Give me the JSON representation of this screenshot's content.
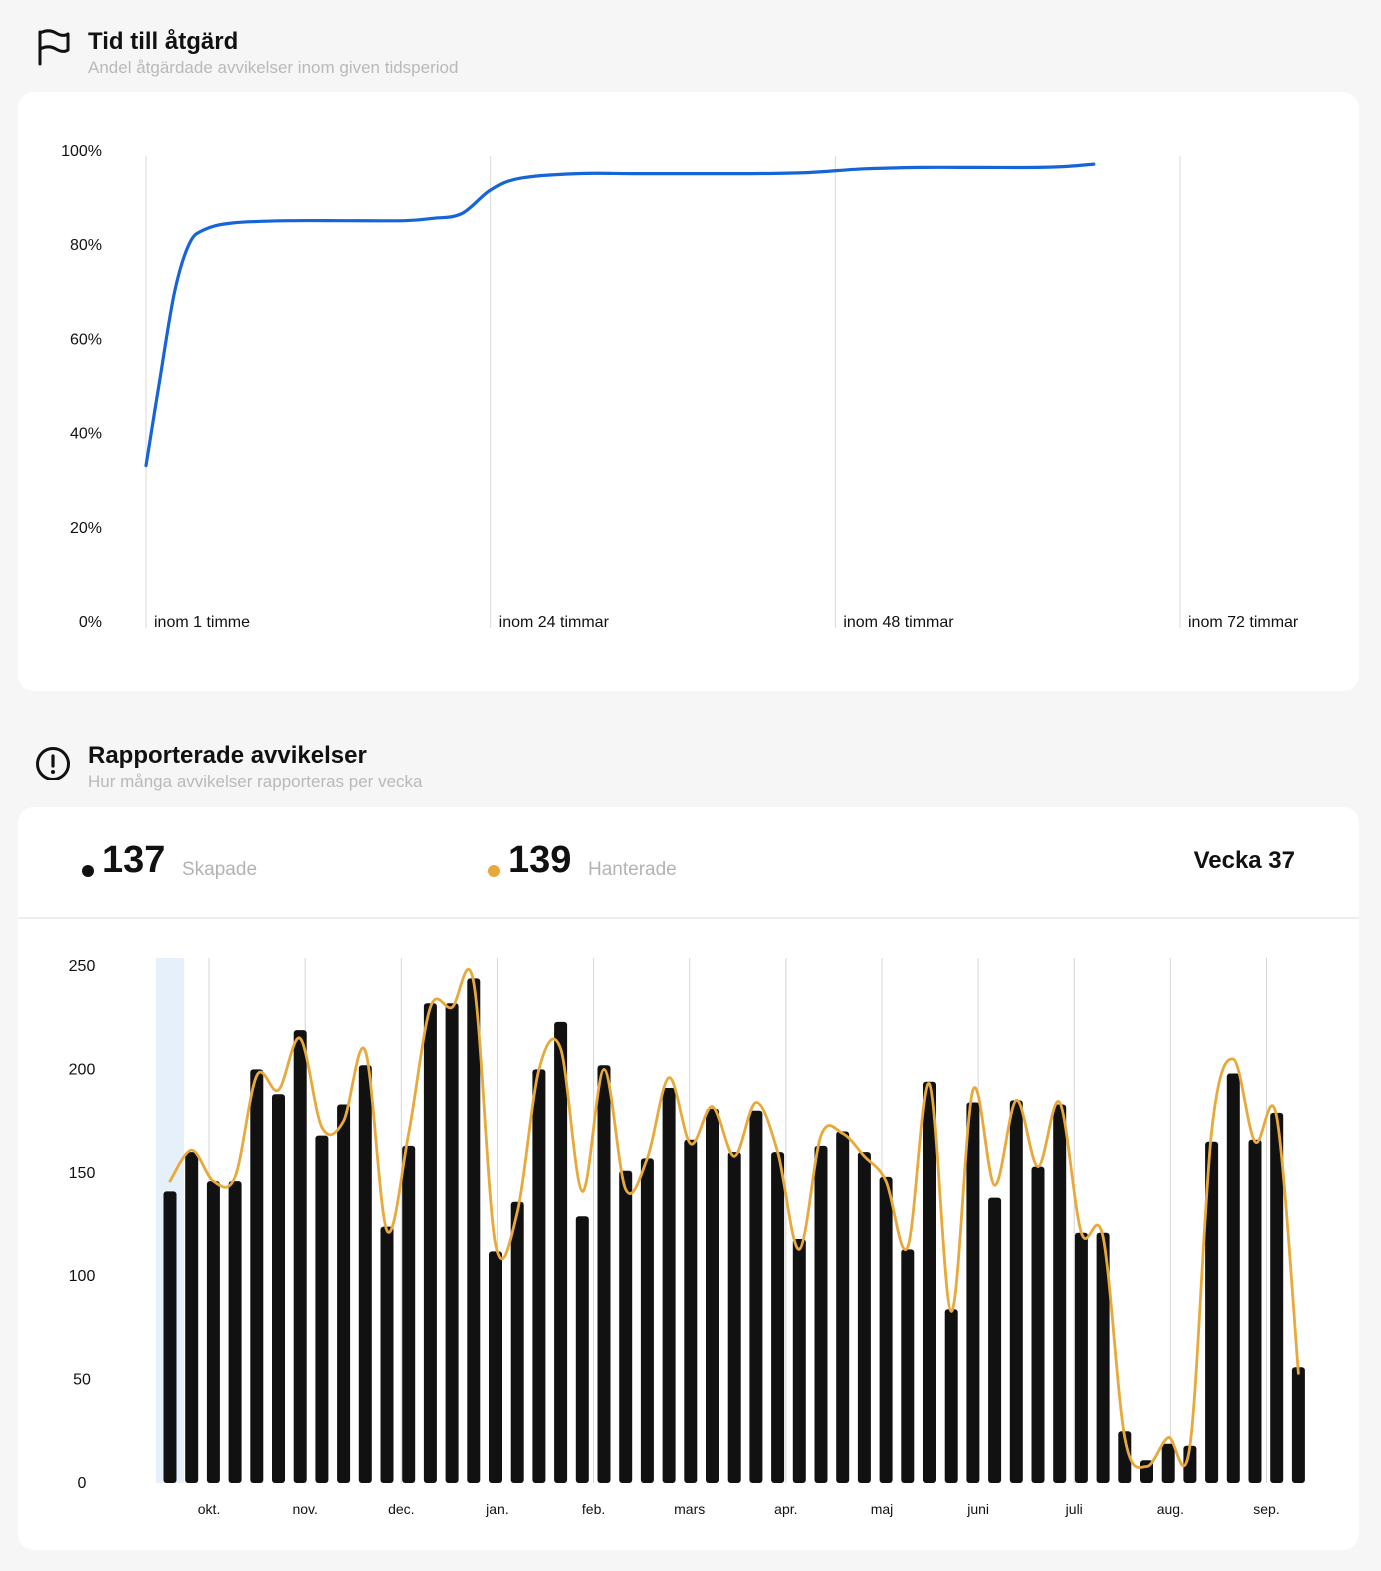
{
  "resolution_section": {
    "title": "Tid till åtgärd",
    "subtitle": "Andel åtgärdade avvikelser inom given tidsperiod",
    "icon": "flag-icon"
  },
  "reported_section": {
    "title": "Rapporterade avvikelser",
    "subtitle": "Hur många avvikelser rapporteras per vecka",
    "icon": "alert-circle-icon"
  },
  "stats": {
    "created": {
      "value": "137",
      "label": "Skapade",
      "color": "#111111"
    },
    "handled": {
      "value": "139",
      "label": "Hanterade",
      "color": "#e8a93a"
    },
    "week_label": "Vecka 37"
  },
  "chart_data": [
    {
      "type": "line",
      "y_ticks": [
        "100%",
        "80%",
        "60%",
        "40%",
        "20%",
        "0%"
      ],
      "ylim": [
        0,
        100
      ],
      "categories": [
        "inom 1 timme",
        "inom 24 timmar",
        "inom 48 timmar",
        "inom 72 timmar"
      ],
      "xlim": [
        0,
        72
      ],
      "line_color": "#1565d8",
      "grid": "vertical",
      "series": [
        {
          "x": [
            0,
            1,
            2,
            3,
            4,
            6,
            10,
            14,
            18,
            20,
            22,
            24,
            26,
            30,
            34,
            38,
            42,
            46,
            50,
            54,
            58,
            62,
            64,
            66
          ],
          "y": [
            33,
            52,
            70,
            80,
            83,
            84.5,
            85,
            85,
            85,
            85.5,
            86.5,
            91.5,
            94,
            95,
            95,
            95,
            95,
            95.2,
            96,
            96.3,
            96.3,
            96.3,
            96.5,
            97
          ]
        }
      ]
    },
    {
      "type": "bar",
      "y_ticks": [
        "250",
        "200",
        "150",
        "100",
        "50",
        "0"
      ],
      "ylim": [
        0,
        250
      ],
      "month_labels": [
        "okt.",
        "nov.",
        "dec.",
        "jan.",
        "feb.",
        "mars",
        "apr.",
        "maj",
        "juni",
        "juli",
        "aug.",
        "sep."
      ],
      "bar_color": "#111111",
      "line_color": "#e8a93a",
      "highlight_color": "#e6f0fb",
      "grid": "vertical",
      "series": [
        {
          "name": "Skapade",
          "values": [
            141,
            160,
            146,
            146,
            200,
            188,
            219,
            168,
            183,
            202,
            124,
            163,
            232,
            232,
            244,
            112,
            136,
            200,
            223,
            129,
            202,
            151,
            157,
            191,
            166,
            181,
            160,
            180,
            160,
            118,
            163,
            170,
            160,
            148,
            113,
            194,
            84,
            184,
            138,
            185,
            153,
            183,
            121,
            121,
            25,
            11,
            19,
            18,
            165,
            198,
            166,
            179,
            56
          ]
        },
        {
          "name": "Hanterade",
          "values": [
            146,
            161,
            146,
            148,
            197,
            190,
            215,
            172,
            175,
            209,
            122,
            169,
            230,
            230,
            242,
            116,
            131,
            200,
            210,
            141,
            200,
            142,
            157,
            196,
            164,
            182,
            158,
            184,
            160,
            113,
            168,
            169,
            158,
            146,
            114,
            193,
            83,
            190,
            144,
            185,
            153,
            184,
            121,
            119,
            22,
            8,
            22,
            18,
            170,
            205,
            165,
            177,
            53
          ]
        }
      ]
    }
  ]
}
